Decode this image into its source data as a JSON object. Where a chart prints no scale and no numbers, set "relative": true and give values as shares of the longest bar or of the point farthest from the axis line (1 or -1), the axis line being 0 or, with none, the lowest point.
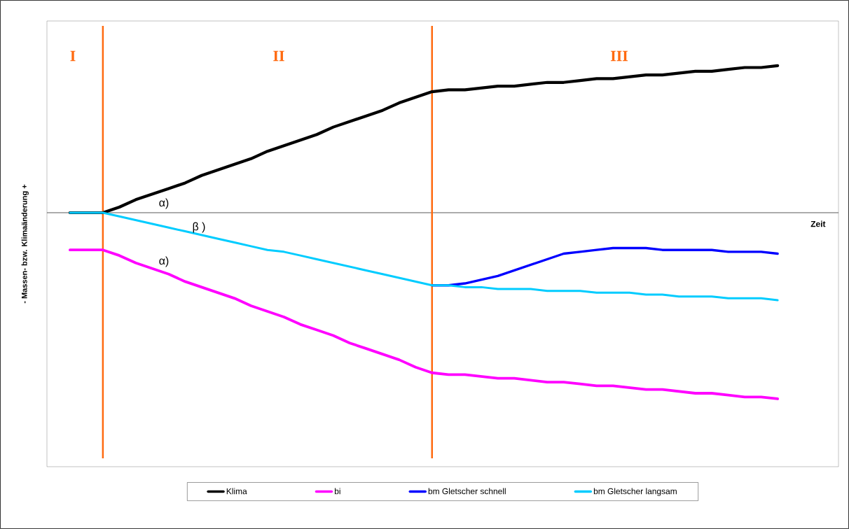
{
  "chart_data": {
    "type": "line",
    "relative": true,
    "ylabel": "- Massen- bzw. Klimaänderung +",
    "xlabel": "Zeit",
    "categories": [
      null,
      null,
      null,
      null,
      null,
      null,
      null,
      null,
      null,
      null,
      null,
      null,
      null,
      null,
      null,
      null,
      null,
      null,
      null,
      null,
      null,
      null,
      null,
      null,
      null,
      null,
      null,
      null,
      null,
      null,
      null,
      null,
      null,
      null,
      null,
      null,
      null,
      null,
      null,
      null,
      null,
      null,
      null,
      null
    ],
    "tick_labels": false,
    "legend": "bottom",
    "marker": "none",
    "line_style": "solid",
    "series": [
      {
        "name": "Klima",
        "color": "#000000",
        "values": [
          0,
          0,
          0,
          0.03,
          0.07,
          0.1,
          0.13,
          0.16,
          0.2,
          0.23,
          0.26,
          0.29,
          0.33,
          0.36,
          0.39,
          0.42,
          0.46,
          0.49,
          0.52,
          0.55,
          0.59,
          0.62,
          0.65,
          0.66,
          0.66,
          0.67,
          0.68,
          0.68,
          0.69,
          0.7,
          0.7,
          0.71,
          0.72,
          0.72,
          0.73,
          0.74,
          0.74,
          0.75,
          0.76,
          0.76,
          0.77,
          0.78,
          0.78,
          0.79
        ]
      },
      {
        "name": "bi",
        "color": "#ff00ff",
        "values": [
          -0.2,
          -0.2,
          -0.2,
          -0.23,
          -0.27,
          -0.3,
          -0.33,
          -0.37,
          -0.4,
          -0.43,
          -0.46,
          -0.5,
          -0.53,
          -0.56,
          -0.6,
          -0.63,
          -0.66,
          -0.7,
          -0.73,
          -0.76,
          -0.79,
          -0.83,
          -0.86,
          -0.87,
          -0.87,
          -0.88,
          -0.89,
          -0.89,
          -0.9,
          -0.91,
          -0.91,
          -0.92,
          -0.93,
          -0.93,
          -0.94,
          -0.95,
          -0.95,
          -0.96,
          -0.97,
          -0.97,
          -0.98,
          -0.99,
          -0.99,
          -1
        ]
      },
      {
        "name": "bm Gletscher schnell",
        "color": "#0000ff",
        "values": [
          null,
          null,
          null,
          null,
          null,
          null,
          null,
          null,
          null,
          null,
          null,
          null,
          null,
          null,
          null,
          null,
          null,
          null,
          null,
          null,
          null,
          null,
          -0.39,
          -0.39,
          -0.38,
          -0.36,
          -0.34,
          -0.31,
          -0.28,
          -0.25,
          -0.22,
          -0.21,
          -0.2,
          -0.19,
          -0.19,
          -0.19,
          -0.2,
          -0.2,
          -0.2,
          -0.2,
          -0.21,
          -0.21,
          -0.21,
          -0.22
        ]
      },
      {
        "name": "bm Gletscher langsam",
        "color": "#00ccff",
        "values": [
          0,
          0,
          0,
          -0.02,
          -0.04,
          -0.06,
          -0.08,
          -0.1,
          -0.12,
          -0.14,
          -0.16,
          -0.18,
          -0.2,
          -0.21,
          -0.23,
          -0.25,
          -0.27,
          -0.29,
          -0.31,
          -0.33,
          -0.35,
          -0.37,
          -0.39,
          -0.39,
          -0.4,
          -0.4,
          -0.41,
          -0.41,
          -0.41,
          -0.42,
          -0.42,
          -0.42,
          -0.43,
          -0.43,
          -0.43,
          -0.44,
          -0.44,
          -0.45,
          -0.45,
          -0.45,
          -0.46,
          -0.46,
          -0.46,
          -0.47
        ]
      }
    ],
    "annotations": [
      "I",
      "II",
      "III",
      "α)",
      "β )",
      "α)"
    ]
  }
}
